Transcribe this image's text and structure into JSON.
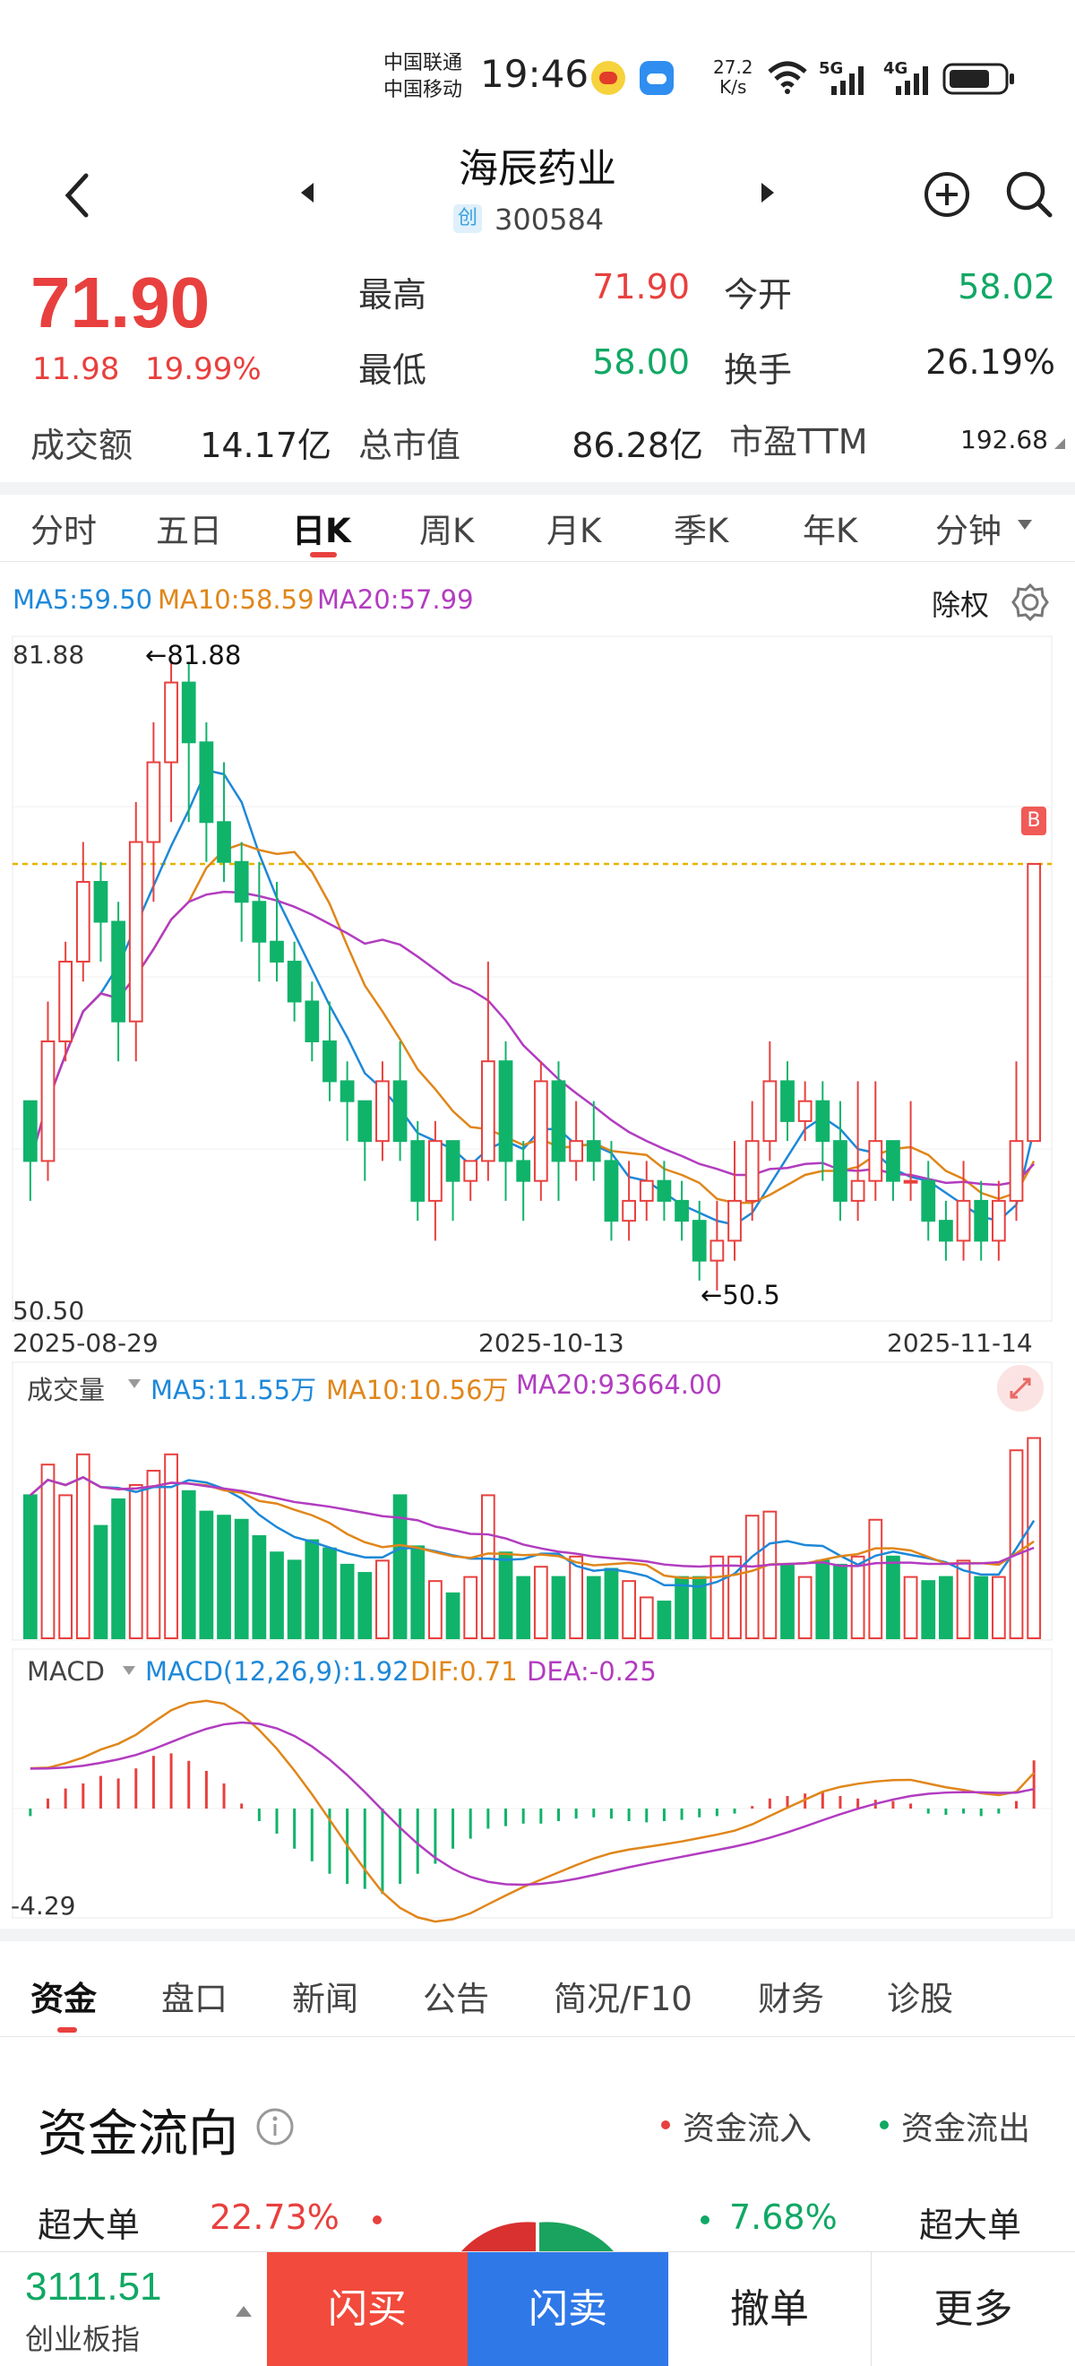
{
  "status_bar": {
    "carrier1": "中国联通",
    "carrier2": "中国移动",
    "time": "19:46",
    "net_speed_value": "27.2",
    "net_speed_unit": "K/s",
    "sig1": "5G",
    "sig2": "4G"
  },
  "header": {
    "name": "海辰药业",
    "board_badge": "创",
    "code": "300584"
  },
  "quote": {
    "price": "71.90",
    "change": "11.98",
    "change_pct": "19.99%",
    "high_label": "最高",
    "high": "71.90",
    "low_label": "最低",
    "low": "58.00",
    "open_label": "今开",
    "open": "58.02",
    "turnover_label": "换手",
    "turnover": "26.19%",
    "amount_label": "成交额",
    "amount": "14.17亿",
    "mktcap_label": "总市值",
    "mktcap": "86.28亿",
    "pe_label": "市盈TTM",
    "pe": "192.68"
  },
  "period_tabs": [
    "分时",
    "五日",
    "日K",
    "周K",
    "月K",
    "季K",
    "年K",
    "分钟"
  ],
  "active_period": 2,
  "kline": {
    "ma5": "MA5:59.50",
    "ma10": "MA10:58.59",
    "ma20": "MA20:57.99",
    "adjust": "除权",
    "max_label": "81.88",
    "max_marker": "81.88",
    "min_label": "50.50",
    "min_marker": "50.5",
    "buy_badge": "B",
    "dates": [
      "2025-08-29",
      "2025-10-13",
      "2025-11-14"
    ]
  },
  "volume": {
    "label": "成交量",
    "ma5": "MA5:11.55万",
    "ma10": "MA10:10.56万",
    "ma20": "MA20:93664.00"
  },
  "macd": {
    "label": "MACD",
    "macd": "MACD(12,26,9):1.92",
    "dif": "DIF:0.71",
    "dea": "DEA:-0.25",
    "min_label": "-4.29"
  },
  "info_tabs": [
    "资金",
    "盘口",
    "新闻",
    "公告",
    "简况/F10",
    "财务",
    "诊股"
  ],
  "active_info_tab": 0,
  "fund_flow": {
    "title": "资金流向",
    "legend_in": "资金流入",
    "legend_out": "资金流出",
    "row1_label_left": "超大单",
    "row1_in_pct": "22.73%",
    "row1_out_pct": "7.68%",
    "row1_label_right": "超大单"
  },
  "bottom_bar": {
    "index_value": "3111.51",
    "index_name": "创业板指",
    "flash_buy": "闪买",
    "flash_sell": "闪卖",
    "cancel": "撤单",
    "more": "更多"
  },
  "colors": {
    "up": "#e8403e",
    "down": "#10b36a",
    "ma5": "#1e88d8",
    "ma10": "#e0861a",
    "ma20": "#b23cc0",
    "buy_btn": "#f24a3c",
    "sell_btn": "#2f78e8"
  },
  "chart_data": {
    "type": "candlestick",
    "x_start": "2025-08-29",
    "x_mid": "2025-10-13",
    "x_end": "2025-11-14",
    "ylim": [
      50.5,
      81.88
    ],
    "candles": [
      [
        60,
        57,
        60,
        55
      ],
      [
        57,
        63,
        65,
        56
      ],
      [
        63,
        67,
        68,
        62
      ],
      [
        67,
        71,
        73,
        66
      ],
      [
        71,
        69,
        72,
        67
      ],
      [
        69,
        64,
        70,
        62
      ],
      [
        64,
        73,
        75,
        62
      ],
      [
        73,
        77,
        79,
        70
      ],
      [
        77,
        81,
        82,
        74
      ],
      [
        81,
        78,
        82,
        74
      ],
      [
        78,
        74,
        79,
        72
      ],
      [
        74,
        72,
        77,
        71
      ],
      [
        72,
        70,
        73,
        68
      ],
      [
        70,
        68,
        72,
        66
      ],
      [
        68,
        67,
        71,
        66
      ],
      [
        67,
        65,
        68,
        64
      ],
      [
        65,
        63,
        66,
        62
      ],
      [
        63,
        61,
        65,
        60
      ],
      [
        61,
        60,
        62,
        58
      ],
      [
        60,
        58,
        60,
        56
      ],
      [
        58,
        61,
        62,
        57
      ],
      [
        61,
        58,
        63,
        57
      ],
      [
        58,
        55,
        59,
        54
      ],
      [
        55,
        58,
        59,
        53
      ],
      [
        58,
        56,
        58,
        54
      ],
      [
        56,
        57,
        57,
        55
      ],
      [
        57,
        62,
        67,
        56
      ],
      [
        62,
        57,
        63,
        55
      ],
      [
        57,
        56,
        58,
        54
      ],
      [
        56,
        61,
        62,
        55
      ],
      [
        61,
        57,
        62,
        55
      ],
      [
        57,
        58,
        60,
        56
      ],
      [
        58,
        57,
        60,
        56
      ],
      [
        57,
        54,
        58,
        53
      ],
      [
        54,
        55,
        57,
        53
      ],
      [
        55,
        56,
        57,
        54
      ],
      [
        56,
        55,
        57,
        54
      ],
      [
        55,
        54,
        56,
        53
      ],
      [
        54,
        52,
        55,
        51
      ],
      [
        52,
        53,
        55,
        50.5
      ],
      [
        53,
        55,
        58,
        52
      ],
      [
        55,
        58,
        60,
        54
      ],
      [
        58,
        61,
        63,
        57
      ],
      [
        61,
        59,
        62,
        58
      ],
      [
        59,
        60,
        61,
        58
      ],
      [
        60,
        58,
        61,
        56
      ],
      [
        58,
        55,
        60,
        54
      ],
      [
        55,
        56,
        61,
        54
      ],
      [
        56,
        58,
        61,
        55
      ],
      [
        58,
        56,
        58,
        55
      ],
      [
        56,
        56,
        60,
        55
      ],
      [
        56,
        54,
        57,
        53
      ],
      [
        54,
        53,
        55,
        52
      ],
      [
        53,
        55,
        57,
        52
      ],
      [
        55,
        53,
        56,
        52
      ],
      [
        53,
        55,
        56,
        52
      ],
      [
        55,
        58,
        62,
        54
      ],
      [
        58,
        71.9,
        71.9,
        58
      ]
    ],
    "volume_relative": [
      0.7,
      0.85,
      0.7,
      0.9,
      0.55,
      0.68,
      0.75,
      0.82,
      0.9,
      0.72,
      0.62,
      0.6,
      0.58,
      0.5,
      0.42,
      0.38,
      0.48,
      0.44,
      0.36,
      0.32,
      0.38,
      0.7,
      0.45,
      0.28,
      0.22,
      0.3,
      0.7,
      0.42,
      0.3,
      0.35,
      0.3,
      0.4,
      0.3,
      0.34,
      0.28,
      0.2,
      0.18,
      0.3,
      0.3,
      0.4,
      0.4,
      0.6,
      0.62,
      0.36,
      0.3,
      0.38,
      0.36,
      0.4,
      0.58,
      0.4,
      0.3,
      0.28,
      0.3,
      0.38,
      0.3,
      0.3,
      0.92,
      0.98
    ],
    "macd_hist": [
      -0.3,
      0.4,
      0.8,
      1.0,
      1.3,
      1.2,
      1.6,
      2.1,
      2.2,
      1.9,
      1.5,
      1.0,
      0.2,
      -0.5,
      -1.0,
      -1.6,
      -2.1,
      -2.6,
      -3.0,
      -3.2,
      -3.4,
      -3.0,
      -2.6,
      -2.2,
      -1.6,
      -1.2,
      -0.8,
      -0.7,
      -0.6,
      -0.6,
      -0.5,
      -0.4,
      -0.35,
      -0.4,
      -0.5,
      -0.55,
      -0.5,
      -0.45,
      -0.35,
      -0.3,
      -0.2,
      0.1,
      0.4,
      0.5,
      0.6,
      0.7,
      0.5,
      0.4,
      0.35,
      0.3,
      0.2,
      -0.2,
      -0.25,
      -0.2,
      -0.3,
      -0.2,
      0.3,
      1.92
    ]
  }
}
